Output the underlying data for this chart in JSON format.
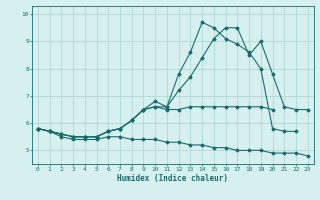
{
  "xlabel": "Humidex (Indice chaleur)",
  "ylabel": "",
  "bg_color": "#d6f0f0",
  "grid_color": "#b0d8d8",
  "line_color": "#1a6b6b",
  "xlim": [
    -0.5,
    23.5
  ],
  "ylim": [
    4.5,
    10.3
  ],
  "xticks": [
    0,
    1,
    2,
    3,
    4,
    5,
    6,
    7,
    8,
    9,
    10,
    11,
    12,
    13,
    14,
    15,
    16,
    17,
    18,
    19,
    20,
    21,
    22,
    23
  ],
  "yticks": [
    5,
    6,
    7,
    8,
    9,
    10
  ],
  "series": [
    [
      5.8,
      5.7,
      5.6,
      5.5,
      5.5,
      5.5,
      5.7,
      5.8,
      6.1,
      6.5,
      6.6,
      6.6,
      7.8,
      8.6,
      9.7,
      9.5,
      9.1,
      8.9,
      8.6,
      8.0,
      5.8,
      5.7,
      5.7,
      null
    ],
    [
      5.8,
      5.7,
      5.6,
      5.5,
      5.5,
      5.5,
      5.7,
      5.8,
      6.1,
      6.5,
      6.8,
      6.6,
      7.2,
      7.7,
      8.4,
      9.1,
      9.5,
      9.5,
      8.5,
      9.0,
      7.8,
      6.6,
      6.5,
      6.5
    ],
    [
      5.8,
      5.7,
      5.6,
      5.5,
      5.5,
      5.5,
      5.7,
      5.8,
      6.1,
      6.5,
      6.6,
      6.5,
      6.5,
      6.6,
      6.6,
      6.6,
      6.6,
      6.6,
      6.6,
      6.6,
      6.5,
      null,
      null,
      null
    ],
    [
      5.8,
      5.7,
      5.5,
      5.4,
      5.4,
      5.4,
      5.5,
      5.5,
      5.4,
      5.4,
      5.4,
      5.3,
      5.3,
      5.2,
      5.2,
      5.1,
      5.1,
      5.0,
      5.0,
      5.0,
      4.9,
      4.9,
      4.9,
      4.8
    ]
  ]
}
